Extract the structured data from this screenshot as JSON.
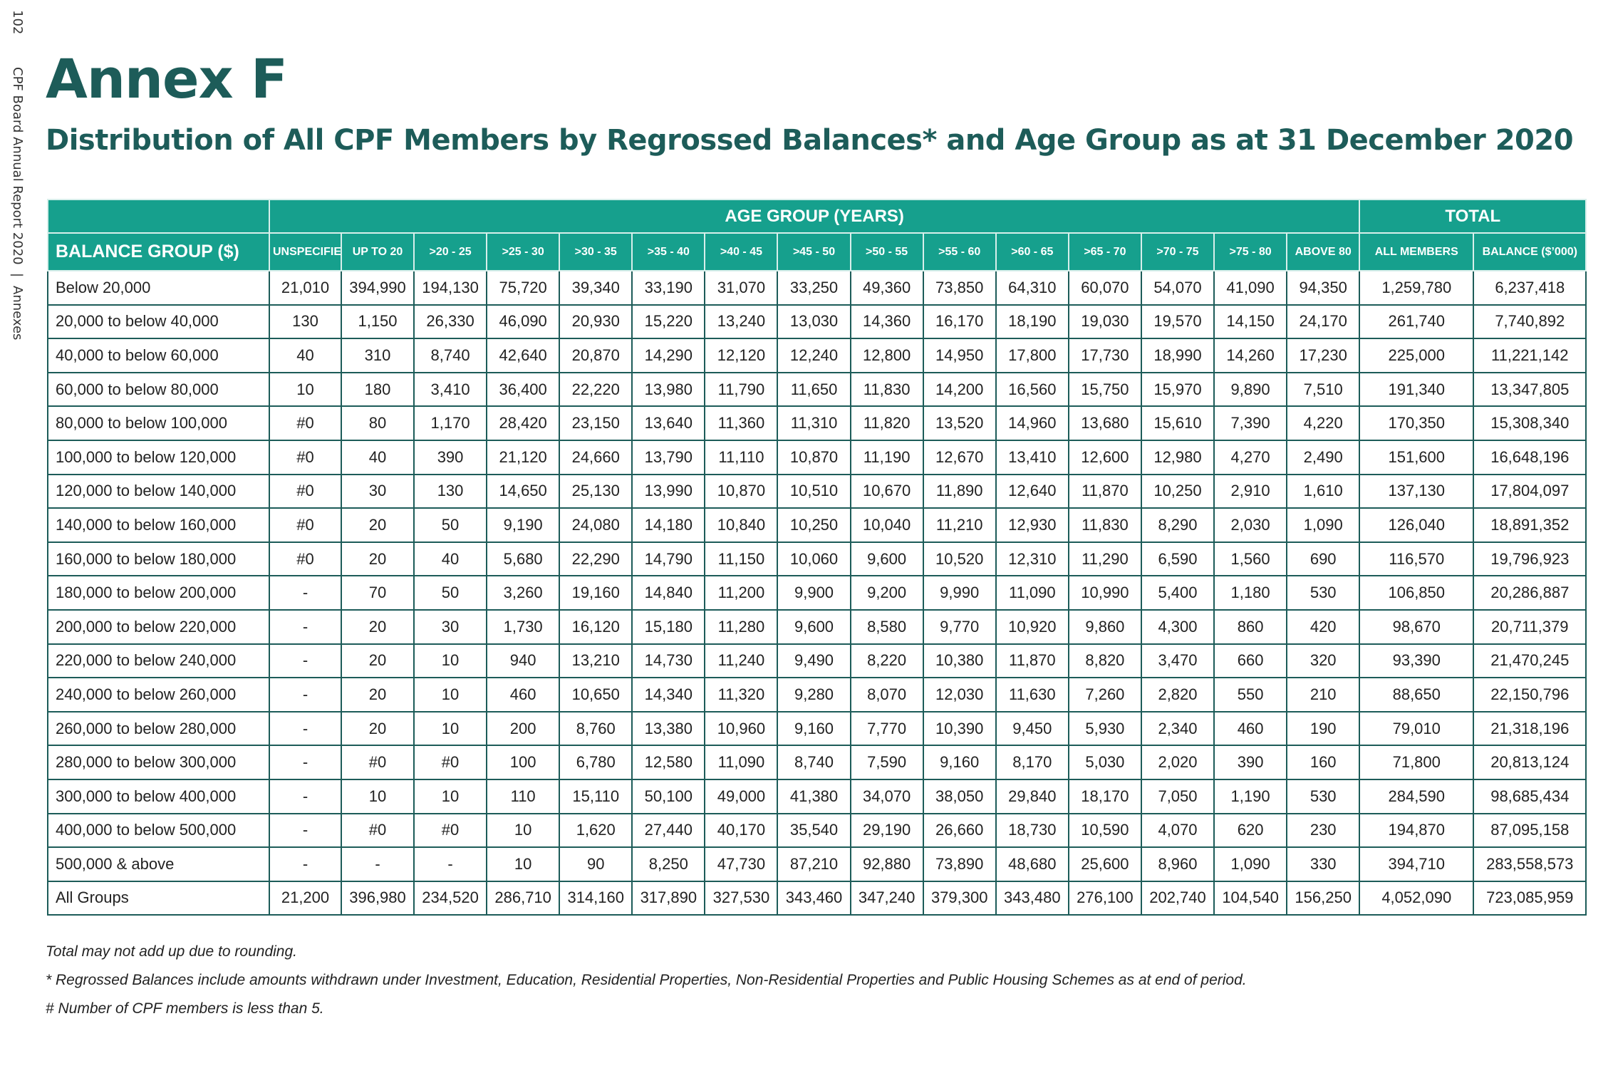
{
  "side": {
    "page_number": "102",
    "report": "CPF Board Annual Report 2020",
    "divider": "|",
    "section": "Annexes"
  },
  "header": {
    "title": "Annex F",
    "subtitle": "Distribution of All CPF Members by Regrossed Balances* and Age Group as at 31 December 2020"
  },
  "table": {
    "group_headers": [
      "AGE GROUP (YEARS)",
      "TOTAL"
    ],
    "columns": [
      "BALANCE GROUP ($)",
      "UNSPECIFIED",
      "UP TO 20",
      ">20 - 25",
      ">25 - 30",
      ">30 - 35",
      ">35 - 40",
      ">40 - 45",
      ">45 - 50",
      ">50 - 55",
      ">55 - 60",
      ">60 - 65",
      ">65 - 70",
      ">70 - 75",
      ">75 - 80",
      "ABOVE 80",
      "ALL MEMBERS",
      "BALANCE ($’000)"
    ],
    "rows": [
      [
        "Below 20,000",
        "21,010",
        "394,990",
        "194,130",
        "75,720",
        "39,340",
        "33,190",
        "31,070",
        "33,250",
        "49,360",
        "73,850",
        "64,310",
        "60,070",
        "54,070",
        "41,090",
        "94,350",
        "1,259,780",
        "6,237,418"
      ],
      [
        "20,000 to below 40,000",
        "130",
        "1,150",
        "26,330",
        "46,090",
        "20,930",
        "15,220",
        "13,240",
        "13,030",
        "14,360",
        "16,170",
        "18,190",
        "19,030",
        "19,570",
        "14,150",
        "24,170",
        "261,740",
        "7,740,892"
      ],
      [
        "40,000 to below 60,000",
        "40",
        "310",
        "8,740",
        "42,640",
        "20,870",
        "14,290",
        "12,120",
        "12,240",
        "12,800",
        "14,950",
        "17,800",
        "17,730",
        "18,990",
        "14,260",
        "17,230",
        "225,000",
        "11,221,142"
      ],
      [
        "60,000 to below 80,000",
        "10",
        "180",
        "3,410",
        "36,400",
        "22,220",
        "13,980",
        "11,790",
        "11,650",
        "11,830",
        "14,200",
        "16,560",
        "15,750",
        "15,970",
        "9,890",
        "7,510",
        "191,340",
        "13,347,805"
      ],
      [
        "80,000 to below 100,000",
        "#0",
        "80",
        "1,170",
        "28,420",
        "23,150",
        "13,640",
        "11,360",
        "11,310",
        "11,820",
        "13,520",
        "14,960",
        "13,680",
        "15,610",
        "7,390",
        "4,220",
        "170,350",
        "15,308,340"
      ],
      [
        "100,000 to below 120,000",
        "#0",
        "40",
        "390",
        "21,120",
        "24,660",
        "13,790",
        "11,110",
        "10,870",
        "11,190",
        "12,670",
        "13,410",
        "12,600",
        "12,980",
        "4,270",
        "2,490",
        "151,600",
        "16,648,196"
      ],
      [
        "120,000 to below 140,000",
        "#0",
        "30",
        "130",
        "14,650",
        "25,130",
        "13,990",
        "10,870",
        "10,510",
        "10,670",
        "11,890",
        "12,640",
        "11,870",
        "10,250",
        "2,910",
        "1,610",
        "137,130",
        "17,804,097"
      ],
      [
        "140,000 to below 160,000",
        "#0",
        "20",
        "50",
        "9,190",
        "24,080",
        "14,180",
        "10,840",
        "10,250",
        "10,040",
        "11,210",
        "12,930",
        "11,830",
        "8,290",
        "2,030",
        "1,090",
        "126,040",
        "18,891,352"
      ],
      [
        "160,000 to below 180,000",
        "#0",
        "20",
        "40",
        "5,680",
        "22,290",
        "14,790",
        "11,150",
        "10,060",
        "9,600",
        "10,520",
        "12,310",
        "11,290",
        "6,590",
        "1,560",
        "690",
        "116,570",
        "19,796,923"
      ],
      [
        "180,000 to below 200,000",
        "-",
        "70",
        "50",
        "3,260",
        "19,160",
        "14,840",
        "11,200",
        "9,900",
        "9,200",
        "9,990",
        "11,090",
        "10,990",
        "5,400",
        "1,180",
        "530",
        "106,850",
        "20,286,887"
      ],
      [
        "200,000 to below 220,000",
        "-",
        "20",
        "30",
        "1,730",
        "16,120",
        "15,180",
        "11,280",
        "9,600",
        "8,580",
        "9,770",
        "10,920",
        "9,860",
        "4,300",
        "860",
        "420",
        "98,670",
        "20,711,379"
      ],
      [
        "220,000 to below 240,000",
        "-",
        "20",
        "10",
        "940",
        "13,210",
        "14,730",
        "11,240",
        "9,490",
        "8,220",
        "10,380",
        "11,870",
        "8,820",
        "3,470",
        "660",
        "320",
        "93,390",
        "21,470,245"
      ],
      [
        "240,000 to below 260,000",
        "-",
        "20",
        "10",
        "460",
        "10,650",
        "14,340",
        "11,320",
        "9,280",
        "8,070",
        "12,030",
        "11,630",
        "7,260",
        "2,820",
        "550",
        "210",
        "88,650",
        "22,150,796"
      ],
      [
        "260,000 to below 280,000",
        "-",
        "20",
        "10",
        "200",
        "8,760",
        "13,380",
        "10,960",
        "9,160",
        "7,770",
        "10,390",
        "9,450",
        "5,930",
        "2,340",
        "460",
        "190",
        "79,010",
        "21,318,196"
      ],
      [
        "280,000 to below 300,000",
        "-",
        "#0",
        "#0",
        "100",
        "6,780",
        "12,580",
        "11,090",
        "8,740",
        "7,590",
        "9,160",
        "8,170",
        "5,030",
        "2,020",
        "390",
        "160",
        "71,800",
        "20,813,124"
      ],
      [
        "300,000 to below 400,000",
        "-",
        "10",
        "10",
        "110",
        "15,110",
        "50,100",
        "49,000",
        "41,380",
        "34,070",
        "38,050",
        "29,840",
        "18,170",
        "7,050",
        "1,190",
        "530",
        "284,590",
        "98,685,434"
      ],
      [
        "400,000 to below 500,000",
        "-",
        "#0",
        "#0",
        "10",
        "1,620",
        "27,440",
        "40,170",
        "35,540",
        "29,190",
        "26,660",
        "18,730",
        "10,590",
        "4,070",
        "620",
        "230",
        "194,870",
        "87,095,158"
      ],
      [
        "500,000 & above",
        "-",
        "-",
        "-",
        "10",
        "90",
        "8,250",
        "47,730",
        "87,210",
        "92,880",
        "73,890",
        "48,680",
        "25,600",
        "8,960",
        "1,090",
        "330",
        "394,710",
        "283,558,573"
      ],
      [
        "All Groups",
        "21,200",
        "396,980",
        "234,520",
        "286,710",
        "314,160",
        "317,890",
        "327,530",
        "343,460",
        "347,240",
        "379,300",
        "343,480",
        "276,100",
        "202,740",
        "104,540",
        "156,250",
        "4,052,090",
        "723,085,959"
      ]
    ]
  },
  "footnotes": [
    "Total may not add up due to rounding.",
    "*  Regrossed Balances include amounts withdrawn under Investment, Education, Residential Properties, Non-Residential Properties and Public Housing Schemes as at end of period.",
    "#  Number of CPF members is less than 5."
  ]
}
